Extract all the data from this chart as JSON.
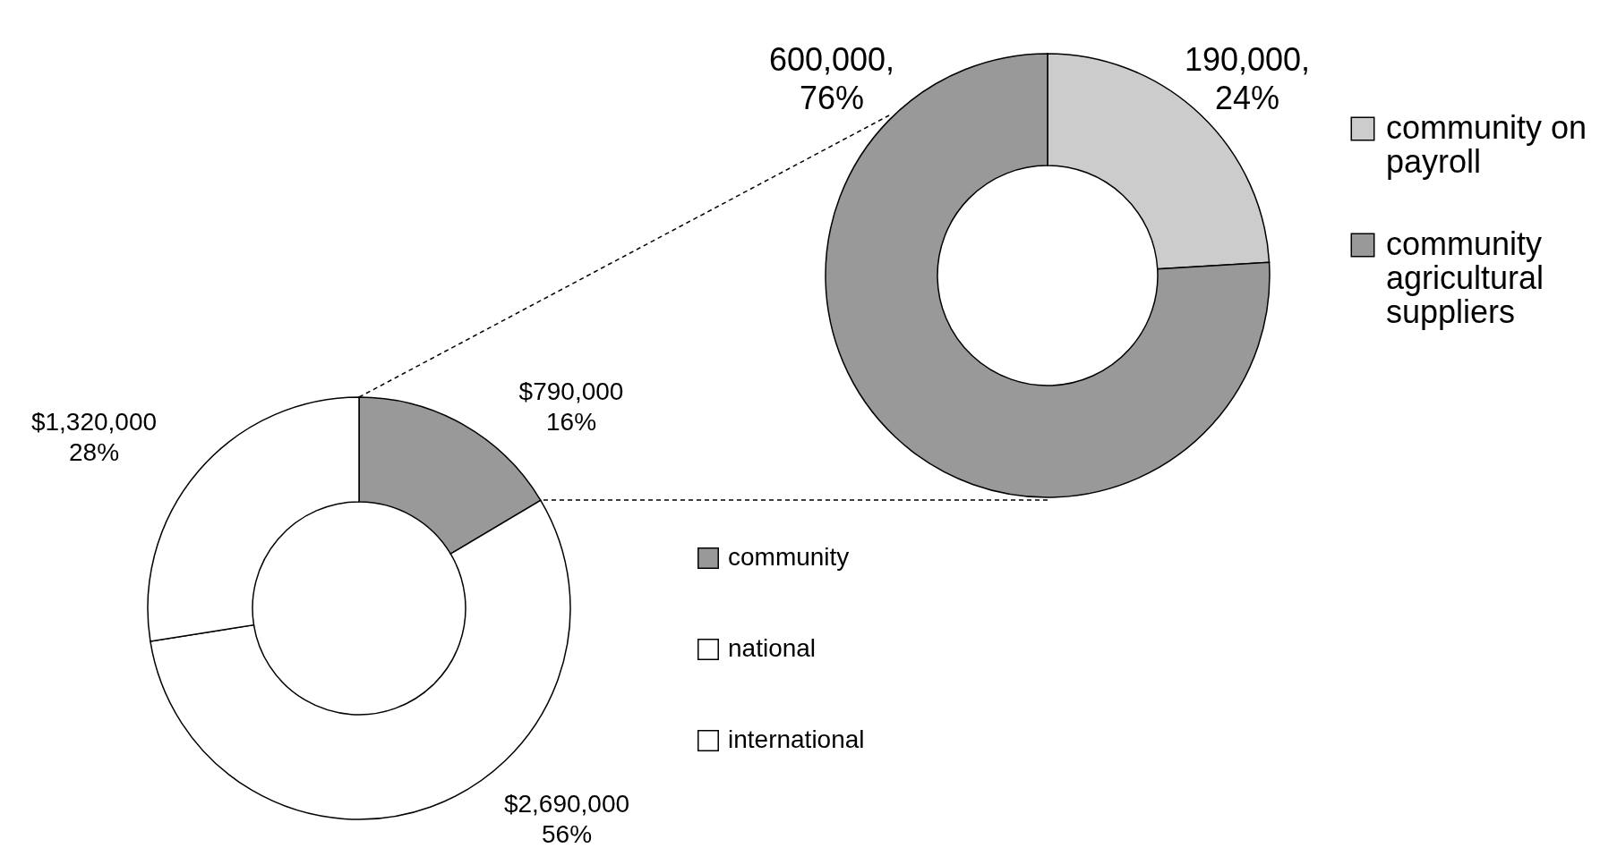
{
  "chart_data": [
    {
      "type": "donut",
      "categories": [
        "community",
        "national",
        "international"
      ],
      "values": [
        790000,
        2690000,
        1320000
      ],
      "colors": [
        "#999999",
        "#ffffff",
        "#ffffff"
      ],
      "value_labels": [
        "$790,000\n16%",
        "$2,690,000\n56%",
        "$1,320,000\n28%"
      ],
      "legend": "right"
    },
    {
      "type": "donut",
      "categories": [
        "community on payroll",
        "community agricultural suppliers"
      ],
      "values": [
        190000,
        600000
      ],
      "colors": [
        "#cccccc",
        "#999999"
      ],
      "value_labels": [
        "190,000,\n24%",
        "600,000,\n76%"
      ],
      "legend": "right"
    }
  ]
}
